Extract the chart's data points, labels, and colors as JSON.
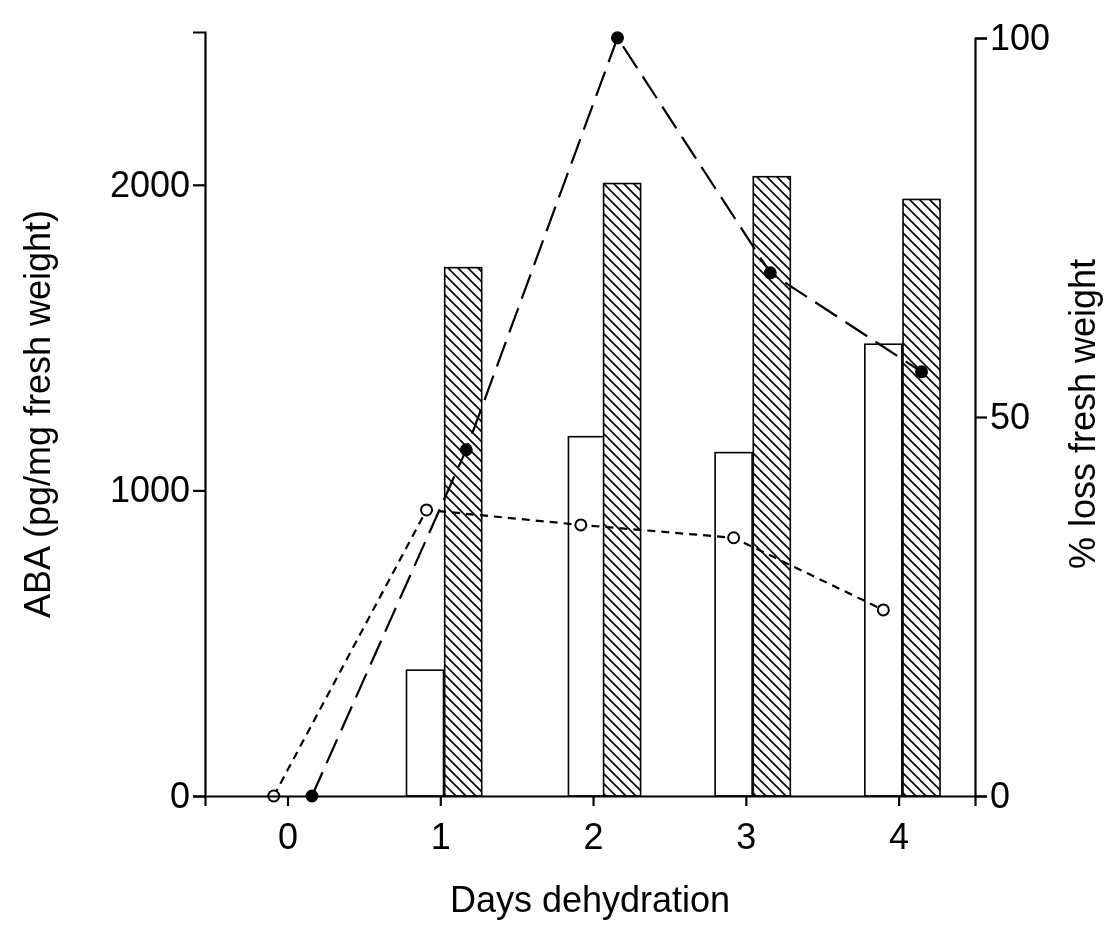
{
  "chart_data": {
    "type": "line",
    "xlabel": "Days dehydration",
    "ylabel": "ABA (pg/mg fresh weight)",
    "y2label": "% loss fresh weight",
    "xlim": [
      -0.54,
      4.5
    ],
    "xticks": [
      0,
      1,
      2,
      3,
      4
    ],
    "ylim": [
      0,
      2500
    ],
    "yticks": [
      0,
      1000,
      2000
    ],
    "y2lim": [
      0,
      100
    ],
    "y2ticks": [
      0,
      50,
      100
    ],
    "grid": false,
    "marker": "circle",
    "series": [
      {
        "type": "bar",
        "axis": "y2",
        "color": "#ffffff",
        "x": [
          0.9,
          1.96,
          2.92,
          3.9
        ],
        "values": [
          16.6,
          47.4,
          45.3,
          59.6
        ]
      },
      {
        "type": "bar",
        "axis": "y2",
        "color": "#000000",
        "x": [
          1.15,
          2.19,
          3.17,
          4.15
        ],
        "values": [
          69.7,
          80.8,
          81.7,
          78.7
        ]
      },
      {
        "color": "#ffffff",
        "line_style": "dotted",
        "x": [
          -0.09,
          0.91,
          1.92,
          2.92,
          3.9
        ],
        "values": [
          0,
          936,
          887,
          845,
          609
        ]
      },
      {
        "color": "#000000",
        "line_style": "dashed",
        "x": [
          0.16,
          1.17,
          2.16,
          3.16,
          4.15
        ],
        "values": [
          0,
          1133,
          2481,
          1712,
          1388
        ]
      }
    ]
  }
}
